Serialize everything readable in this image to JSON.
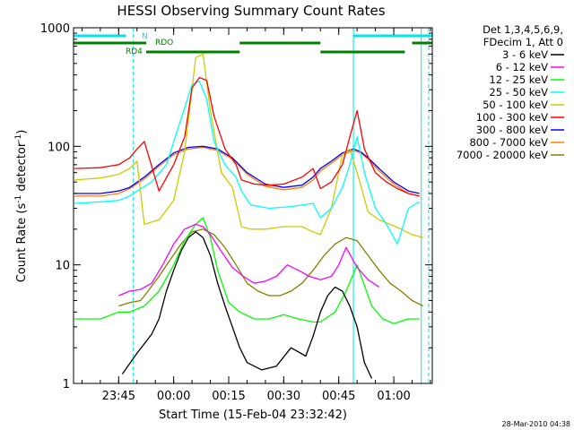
{
  "chart_data": {
    "type": "line",
    "title": "HESSI Observing Summary Count Rates",
    "xlabel": "Start Time (15-Feb-04 23:32:42)",
    "ylabel_main": "Count Rate (s",
    "ylabel_sup1": "-1",
    "ylabel_mid": " detector",
    "ylabel_sup2": "-1",
    "ylabel_end": ")",
    "timestamp": "28-Mar-2010 04:38",
    "y_scale": "log",
    "ylim": [
      1,
      1000
    ],
    "xlim": [
      "23:32:42",
      "01:10:30"
    ],
    "x_ticks": [
      "23:45",
      "00:00",
      "00:15",
      "00:30",
      "00:45",
      "01:00"
    ],
    "y_ticks": [
      "1",
      "10",
      "100",
      "1000"
    ],
    "legend_header": [
      "Det 1,3,4,5,6,9,",
      "FDecim 1, Att 0"
    ],
    "legend_position": "right",
    "series": [
      {
        "name": "3 - 6 keV",
        "color": "#000000",
        "x": [
          "23:46:00",
          "23:50:00",
          "23:54:00",
          "23:56:00",
          "23:58:00",
          "00:00:00",
          "00:02:00",
          "00:04:00",
          "00:06:00",
          "00:08:00",
          "00:10:00",
          "00:12:00",
          "00:14:00",
          "00:16:00",
          "00:18:00",
          "00:20:00",
          "00:24:00",
          "00:28:00",
          "00:32:00",
          "00:36:00",
          "00:38:00",
          "00:40:00",
          "00:42:00",
          "00:44:00",
          "00:46:00",
          "00:48:00",
          "00:50:00",
          "00:52:00",
          "00:54:00"
        ],
        "y": [
          1.2,
          1.8,
          2.6,
          3.5,
          6,
          9,
          13,
          17,
          19,
          17,
          12,
          7,
          4.5,
          3,
          2,
          1.5,
          1.3,
          1.4,
          2,
          1.7,
          2.5,
          4,
          5.5,
          6.5,
          6,
          4.5,
          3,
          1.5,
          1.1
        ]
      },
      {
        "name": "6 - 12 keV",
        "color": "#ff00ff",
        "x": [
          "23:45:00",
          "23:48:00",
          "23:51:00",
          "23:54:00",
          "23:57:00",
          "00:00:00",
          "00:03:00",
          "00:06:00",
          "00:08:00",
          "00:10:00",
          "00:13:00",
          "00:16:00",
          "00:19:00",
          "00:22:00",
          "00:25:00",
          "00:28:00",
          "00:31:00",
          "00:34:00",
          "00:37:00",
          "00:40:00",
          "00:43:00",
          "00:45:00",
          "00:47:00",
          "00:50:00",
          "00:53:00",
          "00:56:00"
        ],
        "y": [
          5.5,
          6,
          6.2,
          7,
          10,
          15,
          20,
          22,
          21,
          18,
          13,
          9.5,
          8,
          7,
          7.3,
          8,
          10,
          9,
          8,
          7.5,
          8,
          10,
          14,
          9.5,
          7.5,
          6.5
        ]
      },
      {
        "name": "12 - 25 keV",
        "color": "#00ff00",
        "x": [
          "23:33:00",
          "23:40:00",
          "23:45:00",
          "23:48:00",
          "23:52:00",
          "23:56:00",
          "00:00:00",
          "00:03:00",
          "00:06:00",
          "00:08:00",
          "00:10:00",
          "00:12:00",
          "00:15:00",
          "00:18:00",
          "00:22:00",
          "00:26:00",
          "00:30:00",
          "00:34:00",
          "00:38:00",
          "00:40:00",
          "00:44:00",
          "00:47:00",
          "00:50:00",
          "00:54:00",
          "00:57:00",
          "01:00:00",
          "01:04:00",
          "01:07:00"
        ],
        "y": [
          3.5,
          3.5,
          4,
          4,
          4.5,
          6,
          10,
          16,
          22,
          25,
          17,
          9,
          4.8,
          4,
          3.5,
          3.5,
          3.8,
          3.5,
          3.3,
          3.3,
          4,
          6,
          10,
          4.5,
          3.5,
          3.2,
          3.5,
          3.5
        ]
      },
      {
        "name": "25 - 50 keV",
        "color": "#00ffff",
        "x": [
          "23:33:00",
          "23:40:00",
          "23:45:00",
          "23:48:00",
          "23:50:00",
          "23:54:00",
          "23:58:00",
          "00:02:00",
          "00:05:00",
          "00:07:00",
          "00:09:00",
          "00:11:00",
          "00:14:00",
          "00:17:00",
          "00:18:30",
          "00:21:00",
          "00:26:00",
          "00:32:00",
          "00:38:00",
          "00:40:00",
          "00:43:00",
          "00:46:00",
          "00:48:00",
          "00:50:00",
          "00:52:00",
          "00:55:00",
          "00:58:00",
          "01:01:00",
          "01:04:00",
          "01:07:00"
        ],
        "y": [
          33,
          34,
          35,
          38,
          42,
          50,
          70,
          170,
          330,
          355,
          250,
          110,
          70,
          55,
          42,
          32,
          30,
          31,
          33,
          25,
          30,
          45,
          70,
          120,
          60,
          30,
          22,
          15,
          30,
          34
        ]
      },
      {
        "name": "50 - 100 keV",
        "color": "#cccc00",
        "x": [
          "23:33:00",
          "23:40:00",
          "23:45:00",
          "23:48:00",
          "23:50:00",
          "23:52:00",
          "23:56:00",
          "00:00:00",
          "00:03:00",
          "00:06:00",
          "00:08:00",
          "00:10:00",
          "00:13:00",
          "00:16:00",
          "00:18:30",
          "00:21:00",
          "00:25:00",
          "00:30:00",
          "00:35:00",
          "00:38:00",
          "00:40:00",
          "00:43:00",
          "00:46:00",
          "00:48:00",
          "00:50:00",
          "00:53:00",
          "00:56:00",
          "00:59:00",
          "01:02:00",
          "01:05:00",
          "01:08:00"
        ],
        "y": [
          52,
          54,
          58,
          65,
          75,
          22,
          24,
          35,
          90,
          560,
          600,
          200,
          60,
          45,
          21,
          20,
          20,
          21,
          21,
          19,
          18,
          30,
          85,
          95,
          60,
          28,
          24,
          22,
          20,
          18,
          17
        ]
      },
      {
        "name": "100 - 300 keV",
        "color": "#ff0000",
        "x": [
          "23:33:00",
          "23:40:00",
          "23:45:00",
          "23:48:00",
          "23:50:00",
          "23:52:00",
          "23:56:00",
          "00:00:00",
          "00:03:00",
          "00:05:00",
          "00:07:00",
          "00:09:00",
          "00:11:00",
          "00:14:00",
          "00:17:00",
          "00:18:30",
          "00:22:00",
          "00:26:00",
          "00:30:00",
          "00:35:00",
          "00:38:00",
          "00:40:00",
          "00:43:00",
          "00:46:00",
          "00:48:00",
          "00:50:00",
          "00:52:00",
          "00:55:00",
          "00:58:00",
          "01:01:00",
          "01:04:00",
          "01:07:00"
        ],
        "y": [
          65,
          66,
          70,
          80,
          95,
          110,
          42,
          70,
          120,
          310,
          380,
          360,
          180,
          95,
          70,
          52,
          48,
          47,
          48,
          55,
          65,
          44,
          50,
          70,
          120,
          200,
          95,
          60,
          50,
          44,
          40,
          38
        ]
      },
      {
        "name": "300 - 800 keV",
        "color": "#0000ff",
        "x": [
          "23:33:00",
          "23:40:00",
          "23:45:00",
          "23:48:00",
          "23:52:00",
          "23:56:00",
          "00:00:00",
          "00:04:00",
          "00:08:00",
          "00:12:00",
          "00:16:00",
          "00:20:00",
          "00:25:00",
          "00:30:00",
          "00:35:00",
          "00:38:00",
          "00:40:00",
          "00:43:00",
          "00:46:00",
          "00:49:00",
          "00:51:00",
          "00:53:00",
          "00:56:00",
          "01:00:00",
          "01:04:00",
          "01:07:00"
        ],
        "y": [
          40,
          40,
          42,
          45,
          55,
          70,
          88,
          98,
          100,
          95,
          80,
          60,
          48,
          45,
          47,
          55,
          65,
          75,
          88,
          95,
          90,
          80,
          65,
          50,
          42,
          40
        ]
      },
      {
        "name": "800 - 7000 keV",
        "color": "#ff8000",
        "x": [
          "23:33:00",
          "23:40:00",
          "23:45:00",
          "23:48:00",
          "23:52:00",
          "23:56:00",
          "00:00:00",
          "00:04:00",
          "00:08:00",
          "00:12:00",
          "00:16:00",
          "00:20:00",
          "00:25:00",
          "00:30:00",
          "00:35:00",
          "00:38:00",
          "00:40:00",
          "00:43:00",
          "00:46:00",
          "00:49:00",
          "00:51:00",
          "00:53:00",
          "00:56:00",
          "01:00:00",
          "01:04:00",
          "01:07:00"
        ],
        "y": [
          38,
          38,
          40,
          44,
          53,
          68,
          85,
          95,
          98,
          92,
          78,
          58,
          46,
          43,
          45,
          52,
          62,
          72,
          85,
          92,
          88,
          78,
          62,
          48,
          40,
          38
        ]
      },
      {
        "name": "7000 - 20000 keV",
        "color": "#808000",
        "x": [
          "23:45:00",
          "23:48:00",
          "23:51:00",
          "23:53:00",
          "23:56:00",
          "23:59:00",
          "00:02:00",
          "00:05:00",
          "00:08:00",
          "00:11:00",
          "00:14:00",
          "00:17:00",
          "00:20:00",
          "00:23:00",
          "00:26:00",
          "00:29:00",
          "00:32:00",
          "00:35:00",
          "00:38:00",
          "00:41:00",
          "00:44:00",
          "00:47:00",
          "00:50:00",
          "00:53:00",
          "00:56:00",
          "00:59:00",
          "01:02:00",
          "01:05:00",
          "01:08:00"
        ],
        "y": [
          4.5,
          4.8,
          5,
          6,
          8,
          11,
          15,
          19,
          20,
          18,
          14,
          10,
          7,
          6,
          5.5,
          5.5,
          6,
          7,
          9,
          12,
          15,
          17,
          16,
          12,
          9,
          7,
          6,
          5,
          4.5
        ]
      }
    ],
    "status_bars": [
      {
        "label": "",
        "color": "#00e5e5",
        "segments": [
          [
            "23:32:42",
            "23:47:00"
          ],
          [
            "00:49:00",
            "01:10:30"
          ]
        ]
      },
      {
        "label": "N",
        "color": "#00e5e5",
        "segments": []
      },
      {
        "label": "RDO",
        "color": "#008000",
        "segments": [
          [
            "23:32:42",
            "23:52:30"
          ],
          [
            "00:18:00",
            "00:40:00"
          ],
          [
            "01:05:00",
            "01:10:30"
          ]
        ]
      },
      {
        "label": "RD4",
        "color": "#008000",
        "segments": [
          [
            "23:52:30",
            "00:18:00"
          ],
          [
            "00:40:00",
            "01:03:00"
          ]
        ]
      }
    ],
    "vlines_solid": [
      "00:49:00",
      "01:07:30"
    ],
    "vlines_dashed": [
      "23:49:00",
      "01:09:30"
    ]
  }
}
